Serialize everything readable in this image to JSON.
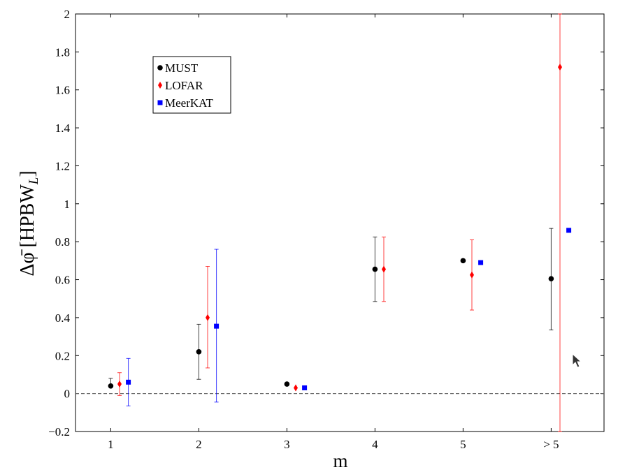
{
  "chart_data": {
    "type": "scatter",
    "xlabel": "m",
    "ylabel_main": "Δ",
    "ylabel_phi": "φ̄",
    "ylabel_unit_open": " [HPBW",
    "ylabel_unit_sub": "L",
    "ylabel_unit_close": "]",
    "categories": [
      "1",
      "2",
      "3",
      "4",
      "5",
      "> 5"
    ],
    "ylim": [
      -0.2,
      2.0
    ],
    "yticks": [
      -0.2,
      0,
      0.2,
      0.4,
      0.6,
      0.8,
      1,
      1.2,
      1.4,
      1.6,
      1.8,
      2
    ],
    "ytick_labels": [
      "−0.2",
      "0",
      "0.2",
      "0.4",
      "0.6",
      "0.8",
      "1",
      "1.2",
      "1.4",
      "1.6",
      "1.8",
      "2"
    ],
    "reference_line_y": 0,
    "legend_position": "top-left",
    "series": [
      {
        "name": "MUST",
        "color": "#000000",
        "marker": "circle",
        "offset": 0.0,
        "points": [
          {
            "cat": 0,
            "y": 0.04,
            "err_low": 0.04,
            "err_high": 0.08
          },
          {
            "cat": 1,
            "y": 0.22,
            "err_low": 0.075,
            "err_high": 0.365
          },
          {
            "cat": 2,
            "y": 0.05,
            "err_low": null,
            "err_high": null
          },
          {
            "cat": 3,
            "y": 0.655,
            "err_low": 0.485,
            "err_high": 0.825
          },
          {
            "cat": 4,
            "y": 0.7,
            "err_low": null,
            "err_high": null
          },
          {
            "cat": 5,
            "y": 0.605,
            "err_low": 0.335,
            "err_high": 0.87
          }
        ]
      },
      {
        "name": "LOFAR",
        "color": "#ff0000",
        "marker": "diamond",
        "offset": 0.1,
        "points": [
          {
            "cat": 0,
            "y": 0.05,
            "err_low": -0.01,
            "err_high": 0.11
          },
          {
            "cat": 1,
            "y": 0.4,
            "err_low": 0.135,
            "err_high": 0.67
          },
          {
            "cat": 2,
            "y": 0.03,
            "err_low": null,
            "err_high": null
          },
          {
            "cat": 3,
            "y": 0.655,
            "err_low": 0.485,
            "err_high": 0.825
          },
          {
            "cat": 4,
            "y": 0.625,
            "err_low": 0.44,
            "err_high": 0.81
          },
          {
            "cat": 5,
            "y": 1.72,
            "err_low": -0.2,
            "err_high": 2.0
          }
        ]
      },
      {
        "name": "MeerKAT",
        "color": "#0000ff",
        "marker": "square",
        "offset": 0.2,
        "points": [
          {
            "cat": 0,
            "y": 0.06,
            "err_low": -0.065,
            "err_high": 0.185
          },
          {
            "cat": 1,
            "y": 0.355,
            "err_low": -0.045,
            "err_high": 0.76
          },
          {
            "cat": 2,
            "y": 0.03,
            "err_low": null,
            "err_high": null
          },
          {
            "cat": 3,
            "y": null,
            "err_low": null,
            "err_high": null
          },
          {
            "cat": 4,
            "y": 0.69,
            "err_low": null,
            "err_high": null
          },
          {
            "cat": 5,
            "y": 0.86,
            "err_low": null,
            "err_high": null
          }
        ]
      }
    ]
  }
}
